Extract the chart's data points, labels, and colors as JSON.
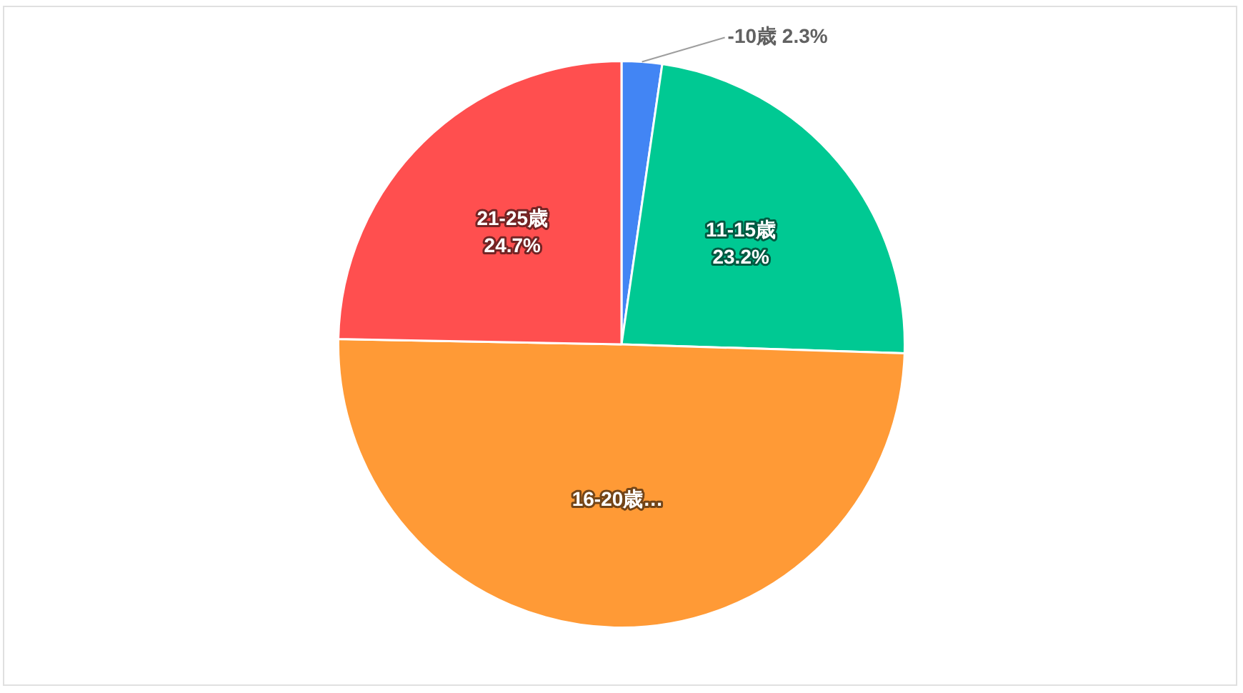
{
  "chart_data": {
    "type": "pie",
    "categories": [
      "-10歳",
      "11-15歳",
      "16-20歳…",
      "21-25歳"
    ],
    "values": [
      2.3,
      23.2,
      49.8,
      24.7
    ],
    "colors": [
      "#4285f4",
      "#00c993",
      "#ff9a36",
      "#ff4f4f"
    ],
    "value_labels": [
      "2.3%",
      "23.2%",
      null,
      "24.7%"
    ]
  }
}
